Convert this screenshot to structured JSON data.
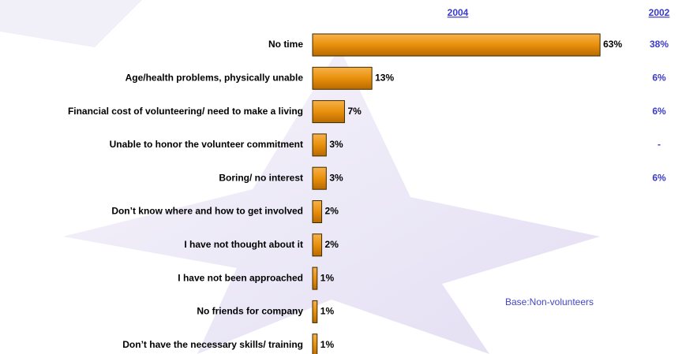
{
  "chart_data": {
    "type": "bar",
    "orientation": "horizontal",
    "categories": [
      "No time",
      "Age/health problems, physically unable",
      "Financial cost of volunteering/ need to make a living",
      "Unable to honor the volunteer commitment",
      "Boring/ no interest",
      "Don’t know where and how to get involved",
      "I have not thought about it",
      "I have not been approached",
      "No friends for company",
      "Don’t have the necessary skills/ training"
    ],
    "series": [
      {
        "name": "2004",
        "color": "#e8900c",
        "values": [
          63,
          13,
          7,
          3,
          3,
          2,
          2,
          1,
          1,
          1
        ],
        "value_labels": [
          "63%",
          "13%",
          "7%",
          "3%",
          "3%",
          "2%",
          "2%",
          "1%",
          "1%",
          "1%"
        ]
      },
      {
        "name": "2002",
        "color": "#3a3acc",
        "display": "text",
        "values": [
          38,
          6,
          6,
          null,
          6,
          null,
          null,
          null,
          null,
          null
        ],
        "value_labels": [
          "38%",
          "6%",
          "6%",
          "-",
          "6%",
          null,
          null,
          null,
          null,
          null
        ]
      }
    ],
    "annotation": "Base:Non-volunteers"
  }
}
